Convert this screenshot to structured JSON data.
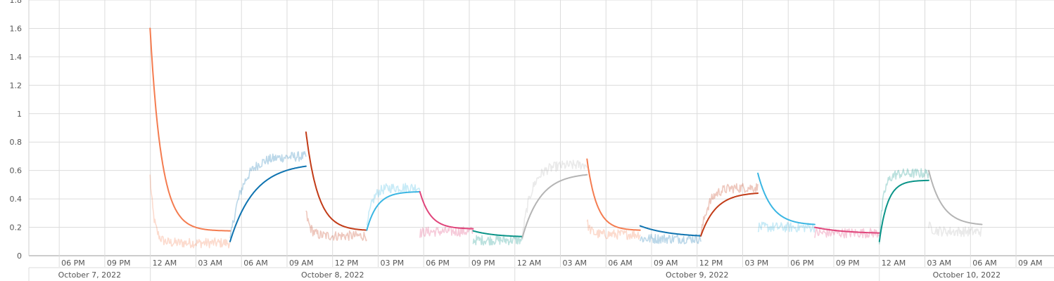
{
  "chart_data": {
    "type": "line",
    "title": "",
    "xlabel": "",
    "ylabel": "",
    "ylim": [
      0,
      1.8
    ],
    "y_ticks": [
      0,
      0.2,
      0.4,
      0.6,
      0.8,
      1,
      1.2,
      1.4,
      1.6,
      1.8
    ],
    "x_range": [
      "2022-10-07T16:00",
      "2022-10-10T11:30"
    ],
    "x_ticks": [
      {
        "t": "2022-10-07T18:00",
        "label": "06 PM"
      },
      {
        "t": "2022-10-07T21:00",
        "label": "09 PM"
      },
      {
        "t": "2022-10-08T00:00",
        "label": "12 AM"
      },
      {
        "t": "2022-10-08T03:00",
        "label": "03 AM"
      },
      {
        "t": "2022-10-08T06:00",
        "label": "06 AM"
      },
      {
        "t": "2022-10-08T09:00",
        "label": "09 AM"
      },
      {
        "t": "2022-10-08T12:00",
        "label": "12 PM"
      },
      {
        "t": "2022-10-08T15:00",
        "label": "03 PM"
      },
      {
        "t": "2022-10-08T18:00",
        "label": "06 PM"
      },
      {
        "t": "2022-10-08T21:00",
        "label": "09 PM"
      },
      {
        "t": "2022-10-09T00:00",
        "label": "12 AM"
      },
      {
        "t": "2022-10-09T03:00",
        "label": "03 AM"
      },
      {
        "t": "2022-10-09T06:00",
        "label": "06 AM"
      },
      {
        "t": "2022-10-09T09:00",
        "label": "09 AM"
      },
      {
        "t": "2022-10-09T12:00",
        "label": "12 PM"
      },
      {
        "t": "2022-10-09T15:00",
        "label": "03 PM"
      },
      {
        "t": "2022-10-09T18:00",
        "label": "06 PM"
      },
      {
        "t": "2022-10-09T21:00",
        "label": "09 PM"
      },
      {
        "t": "2022-10-10T00:00",
        "label": "12 AM"
      },
      {
        "t": "2022-10-10T03:00",
        "label": "03 AM"
      },
      {
        "t": "2022-10-10T06:00",
        "label": "06 AM"
      },
      {
        "t": "2022-10-10T09:00",
        "label": "09 AM"
      }
    ],
    "day_labels": [
      {
        "start": "2022-10-07T16:00",
        "end": "2022-10-08T00:00",
        "label": "October 7, 2022"
      },
      {
        "start": "2022-10-08T00:00",
        "end": "2022-10-09T00:00",
        "label": "October 8, 2022"
      },
      {
        "start": "2022-10-09T00:00",
        "end": "2022-10-10T00:00",
        "label": "October 9, 2022"
      },
      {
        "start": "2022-10-10T00:00",
        "end": "2022-10-10T11:30",
        "label": "October 10, 2022"
      }
    ],
    "grid": true,
    "legend": "none",
    "series": [
      {
        "color": "#f47c50",
        "kind": "decay",
        "t0": "2022-10-07T23:59",
        "t1": "2022-10-08T05:15",
        "start": 1.6,
        "end": 0.175,
        "tau": 0.75,
        "noisy_lag": 0.14,
        "noise_base": 0.09
      },
      {
        "color": "#0e73b0",
        "kind": "rise",
        "t0": "2022-10-08T05:15",
        "t1": "2022-10-08T10:15",
        "start": 0.1,
        "end": 0.63,
        "tau": 1.6,
        "noisy_lag": 0.6,
        "noise_base": 0.7
      },
      {
        "color": "#c23b17",
        "kind": "decay",
        "t0": "2022-10-08T10:15",
        "t1": "2022-10-08T14:15",
        "start": 0.87,
        "end": 0.18,
        "tau": 0.8,
        "noisy_lag": 0.14,
        "noise_base": 0.14
      },
      {
        "color": "#3ab6e3",
        "kind": "rise",
        "t0": "2022-10-08T14:15",
        "t1": "2022-10-08T17:45",
        "start": 0.18,
        "end": 0.45,
        "tau": 0.7,
        "noisy_lag": 0.3,
        "noise_base": 0.48
      },
      {
        "color": "#e0457b",
        "kind": "decay",
        "t0": "2022-10-08T17:45",
        "t1": "2022-10-08T21:15",
        "start": 0.45,
        "end": 0.19,
        "tau": 0.7,
        "noisy_lag": 0.16,
        "noise_base": 0.17
      },
      {
        "color": "#0a9488",
        "kind": "flat",
        "t0": "2022-10-08T21:15",
        "t1": "2022-10-09T00:30",
        "start": 0.175,
        "end": 0.135,
        "tau": 1.5,
        "noisy_lag": 0.13,
        "noise_base": 0.11
      },
      {
        "color": "#b4b4b4",
        "kind": "rise",
        "t0": "2022-10-09T00:30",
        "t1": "2022-10-09T04:45",
        "start": 0.13,
        "end": 0.57,
        "tau": 1.2,
        "noisy_lag": 0.3,
        "noise_base": 0.64
      },
      {
        "color": "#f47c50",
        "kind": "decay",
        "t0": "2022-10-09T04:45",
        "t1": "2022-10-09T08:15",
        "start": 0.68,
        "end": 0.18,
        "tau": 0.65,
        "noisy_lag": 0.14,
        "noise_base": 0.15
      },
      {
        "color": "#0e73b0",
        "kind": "flat",
        "t0": "2022-10-09T08:15",
        "t1": "2022-10-09T12:15",
        "start": 0.21,
        "end": 0.14,
        "tau": 2.0,
        "noisy_lag": 0.12,
        "noise_base": 0.12
      },
      {
        "color": "#c23b17",
        "kind": "rise",
        "t0": "2022-10-09T12:15",
        "t1": "2022-10-09T16:00",
        "start": 0.14,
        "end": 0.44,
        "tau": 1.0,
        "noisy_lag": 0.45,
        "noise_base": 0.48
      },
      {
        "color": "#3ab6e3",
        "kind": "decay",
        "t0": "2022-10-09T16:00",
        "t1": "2022-10-09T19:45",
        "start": 0.58,
        "end": 0.22,
        "tau": 0.9,
        "noisy_lag": 0.14,
        "noise_base": 0.2
      },
      {
        "color": "#e0457b",
        "kind": "flat",
        "t0": "2022-10-09T19:45",
        "t1": "2022-10-10T00:00",
        "start": 0.2,
        "end": 0.16,
        "tau": 2.0,
        "noisy_lag": 0.16,
        "noise_base": 0.16
      },
      {
        "color": "#0a9488",
        "kind": "rise",
        "t0": "2022-10-10T00:00",
        "t1": "2022-10-10T03:15",
        "start": 0.1,
        "end": 0.53,
        "tau": 0.55,
        "noisy_lag": 0.7,
        "noise_base": 0.58
      },
      {
        "color": "#b4b4b4",
        "kind": "decay",
        "t0": "2022-10-10T03:15",
        "t1": "2022-10-10T06:45",
        "start": 0.6,
        "end": 0.22,
        "tau": 0.9,
        "noisy_lag": 0.14,
        "noise_base": 0.17
      }
    ]
  }
}
